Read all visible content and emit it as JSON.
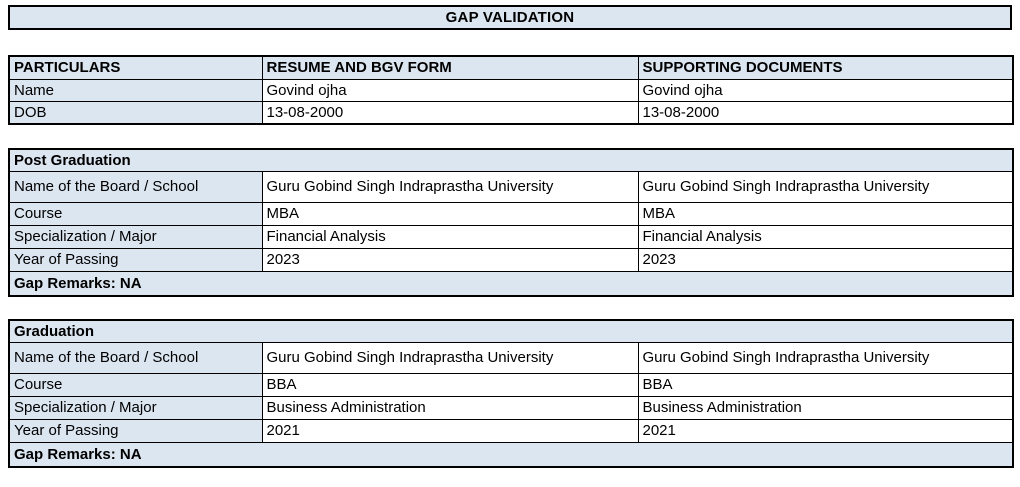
{
  "title": "GAP VALIDATION",
  "colors": {
    "cell_fill": "#dce6f1",
    "data_fill": "#ffffff",
    "border": "#000000",
    "text": "#000000"
  },
  "personal_table": {
    "headers": [
      "PARTICULARS",
      "RESUME AND BGV FORM",
      "SUPPORTING DOCUMENTS"
    ],
    "rows": [
      {
        "label": "Name",
        "resume": "Govind ojha",
        "supporting": "Govind ojha"
      },
      {
        "label": "DOB",
        "resume": "13-08-2000",
        "supporting": "13-08-2000"
      }
    ]
  },
  "sections": [
    {
      "title": "Post Graduation",
      "rows": [
        {
          "label": "Name of the Board / School",
          "resume": "Guru Gobind Singh Indraprastha University",
          "supporting": "Guru Gobind Singh Indraprastha University"
        },
        {
          "label": "Course",
          "resume": "MBA",
          "supporting": "MBA"
        },
        {
          "label": "Specialization / Major",
          "resume": "Financial Analysis",
          "supporting": "Financial Analysis"
        },
        {
          "label": "Year of Passing",
          "resume": "2023",
          "supporting": "2023"
        }
      ],
      "gap_remarks": "Gap Remarks: NA"
    },
    {
      "title": "Graduation",
      "rows": [
        {
          "label": "Name of the Board / School",
          "resume": "Guru Gobind Singh Indraprastha University",
          "supporting": "Guru Gobind Singh Indraprastha University"
        },
        {
          "label": "Course",
          "resume": "BBA",
          "supporting": "BBA"
        },
        {
          "label": "Specialization / Major",
          "resume": "Business Administration",
          "supporting": "Business Administration"
        },
        {
          "label": "Year of Passing",
          "resume": "2021",
          "supporting": "2021"
        }
      ],
      "gap_remarks": "Gap Remarks: NA"
    }
  ]
}
